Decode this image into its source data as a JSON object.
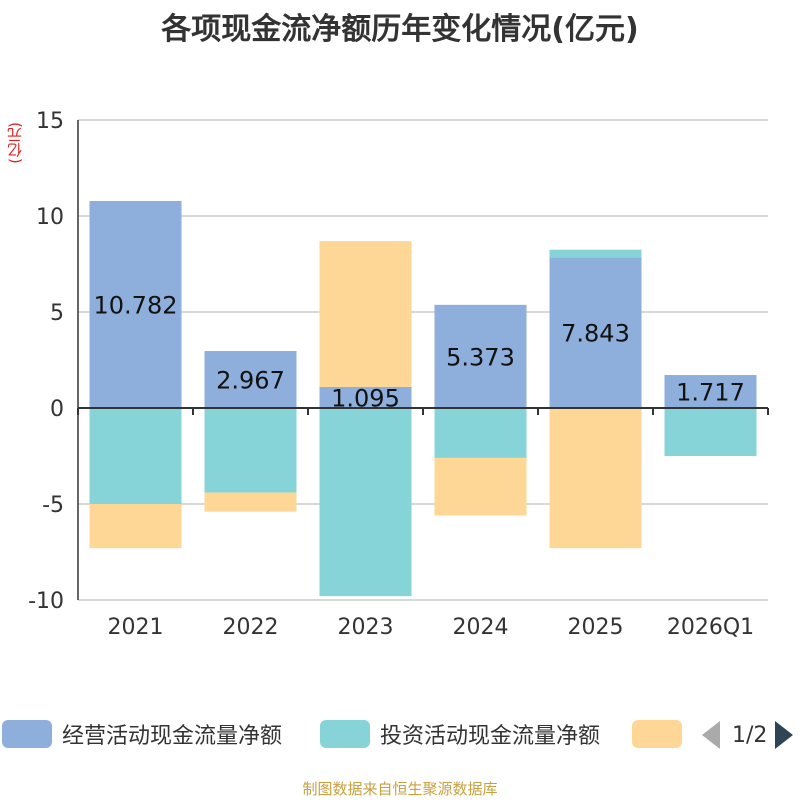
{
  "title": "各项现金流净额历年变化情况(亿元)",
  "unit_label": "(亿元)",
  "source": "制图数据来自恒生聚源数据库",
  "legend": {
    "items": [
      {
        "name": "经营活动现金流量净额",
        "color": "#8eaedb"
      },
      {
        "name": "投资活动现金流量净额",
        "color": "#86d4d8"
      },
      {
        "name": "",
        "color": "#fed796"
      }
    ],
    "page_text": "1/2"
  },
  "chart_data": {
    "type": "bar",
    "stacked": true,
    "title": "各项现金流净额历年变化情况(亿元)",
    "ylabel": "(亿元)",
    "ylim": [
      -10,
      15
    ],
    "yticks": [
      -10,
      -5,
      0,
      5,
      10,
      15
    ],
    "categories": [
      "2021",
      "2022",
      "2023",
      "2024",
      "2025",
      "2026Q1"
    ],
    "series": [
      {
        "name": "经营活动现金流量净额",
        "color": "#8eaedb",
        "values": [
          10.782,
          2.967,
          1.095,
          5.373,
          7.843,
          1.717
        ],
        "labels": [
          "10.782",
          "2.967",
          "1.095",
          "5.373",
          "7.843",
          "1.717"
        ]
      },
      {
        "name": "投资活动现金流量净额",
        "color": "#86d4d8",
        "values": [
          -5.0,
          -4.4,
          -9.8,
          -2.6,
          0.4,
          -2.5
        ]
      },
      {
        "name": "",
        "color": "#fed796",
        "values": [
          -2.3,
          -1.0,
          7.6,
          -3.0,
          -7.3,
          0
        ]
      }
    ]
  }
}
